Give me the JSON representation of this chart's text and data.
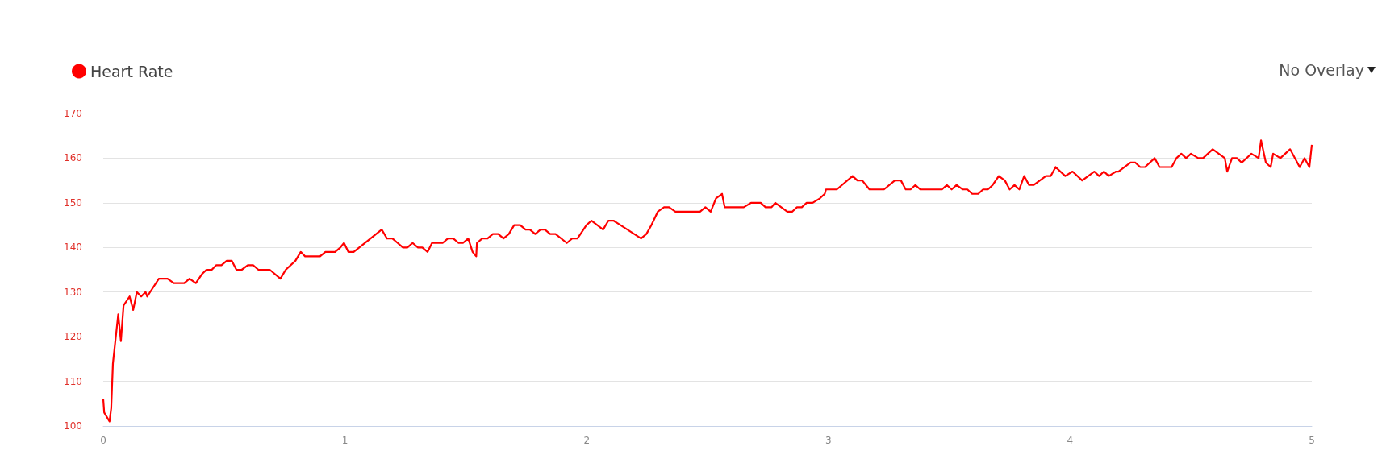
{
  "chart_data": {
    "type": "line",
    "annotations": [
      "No Overlay"
    ],
    "legend": "top left",
    "grid": "y",
    "marker": "none",
    "line_style": "solid",
    "xlim": [
      0,
      5
    ],
    "xticks": [
      0,
      1,
      2,
      3,
      4,
      5
    ],
    "ylim": [
      100,
      170
    ],
    "yticks": [
      100,
      110,
      120,
      130,
      140,
      150,
      160,
      170
    ],
    "series": [
      {
        "name": "Heart Rate",
        "color": "#ff0000",
        "x": [
          0,
          0.004,
          0.026,
          0.033,
          0.04,
          0.062,
          0.073,
          0.084,
          0.109,
          0.124,
          0.139,
          0.157,
          0.175,
          0.182,
          0.23,
          0.266,
          0.292,
          0.335,
          0.357,
          0.383,
          0.408,
          0.427,
          0.449,
          0.467,
          0.489,
          0.511,
          0.532,
          0.551,
          0.573,
          0.598,
          0.62,
          0.642,
          0.689,
          0.733,
          0.755,
          0.795,
          0.817,
          0.835,
          0.897,
          0.919,
          0.959,
          0.981,
          0.996,
          1.014,
          1.036,
          1.152,
          1.174,
          1.196,
          1.218,
          1.24,
          1.258,
          1.28,
          1.302,
          1.32,
          1.342,
          1.36,
          1.404,
          1.426,
          1.448,
          1.47,
          1.488,
          1.51,
          1.528,
          1.543,
          1.546,
          1.568,
          1.59,
          1.612,
          1.634,
          1.656,
          1.678,
          1.7,
          1.725,
          1.747,
          1.765,
          1.787,
          1.809,
          1.827,
          1.849,
          1.871,
          1.918,
          1.94,
          1.962,
          1.999,
          2.02,
          2.068,
          2.09,
          2.111,
          2.225,
          2.247,
          2.268,
          2.294,
          2.32,
          2.341,
          2.367,
          2.469,
          2.491,
          2.513,
          2.535,
          2.56,
          2.571,
          2.65,
          2.68,
          2.72,
          2.74,
          2.765,
          2.78,
          2.83,
          2.85,
          2.87,
          2.89,
          2.91,
          2.935,
          2.965,
          2.985,
          2.99,
          3.035,
          3.1,
          3.12,
          3.14,
          3.17,
          3.23,
          3.275,
          3.3,
          3.32,
          3.34,
          3.36,
          3.38,
          3.47,
          3.49,
          3.51,
          3.53,
          3.555,
          3.575,
          3.595,
          3.62,
          3.64,
          3.66,
          3.68,
          3.705,
          3.73,
          3.75,
          3.77,
          3.79,
          3.81,
          3.83,
          3.85,
          3.9,
          3.92,
          3.94,
          3.98,
          4.01,
          4.05,
          4.1,
          4.12,
          4.14,
          4.16,
          4.19,
          4.2,
          4.25,
          4.27,
          4.29,
          4.31,
          4.35,
          4.37,
          4.42,
          4.44,
          4.46,
          4.48,
          4.5,
          4.53,
          4.55,
          4.59,
          4.64,
          4.65,
          4.67,
          4.69,
          4.71,
          4.75,
          4.78,
          4.79,
          4.81,
          4.83,
          4.84,
          4.87,
          4.91,
          4.95,
          4.97,
          4.99,
          5
        ],
        "values": [
          106,
          103,
          101,
          104,
          114,
          125,
          119,
          127,
          129,
          126,
          130,
          129,
          130,
          129,
          133,
          133,
          132,
          132,
          133,
          132,
          134,
          135,
          135,
          136,
          136,
          137,
          137,
          135,
          135,
          136,
          136,
          135,
          135,
          133,
          135,
          137,
          139,
          138,
          138,
          139,
          139,
          140,
          141,
          139,
          139,
          144,
          142,
          142,
          141,
          140,
          140,
          141,
          140,
          140,
          139,
          141,
          141,
          142,
          142,
          141,
          141,
          142,
          139,
          138,
          141,
          142,
          142,
          143,
          143,
          142,
          143,
          145,
          145,
          144,
          144,
          143,
          144,
          144,
          143,
          143,
          141,
          142,
          142,
          145,
          146,
          144,
          146,
          146,
          142,
          143,
          145,
          148,
          149,
          149,
          148,
          148,
          149,
          148,
          151,
          152,
          149,
          149,
          150,
          150,
          149,
          149,
          150,
          148,
          148,
          149,
          149,
          150,
          150,
          151,
          152,
          153,
          153,
          156,
          155,
          155,
          153,
          153,
          155,
          155,
          153,
          153,
          154,
          153,
          153,
          154,
          153,
          154,
          153,
          153,
          152,
          152,
          153,
          153,
          154,
          156,
          155,
          153,
          154,
          153,
          156,
          154,
          154,
          156,
          156,
          158,
          156,
          157,
          155,
          157,
          156,
          157,
          156,
          157,
          157,
          159,
          159,
          158,
          158,
          160,
          158,
          158,
          160,
          161,
          160,
          161,
          160,
          160,
          162,
          160,
          157,
          160,
          160,
          159,
          161,
          160,
          164,
          159,
          158,
          161,
          160,
          162,
          158,
          160,
          158,
          163
        ]
      }
    ]
  }
}
